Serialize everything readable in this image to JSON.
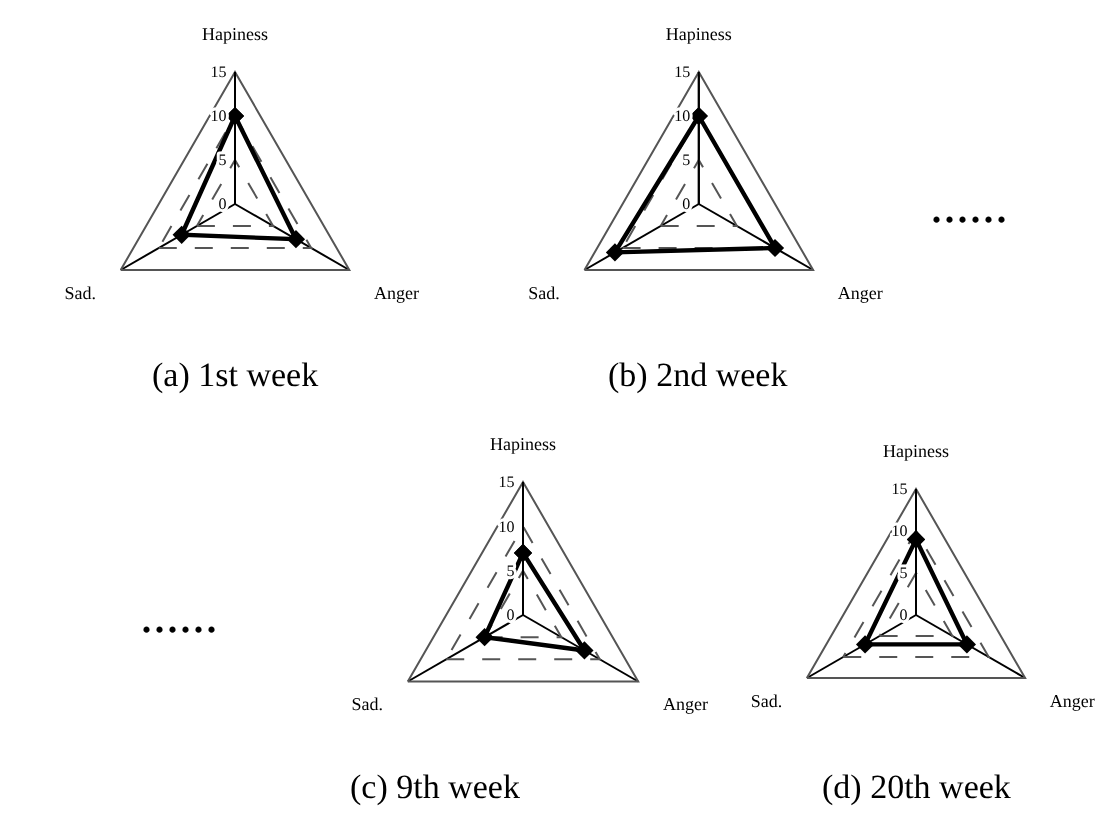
{
  "chart_data": [
    {
      "type": "radar",
      "title": "(a) 1st week",
      "categories": [
        "Hapiness",
        "Anger",
        "Sad."
      ],
      "series": [
        {
          "color": "#000000",
          "values": [
            10,
            8,
            7
          ]
        }
      ],
      "ylim": [
        0,
        15
      ],
      "yticks": [
        0,
        5,
        10,
        15
      ],
      "grid": true,
      "marker": "diamond",
      "line_style": "solid"
    },
    {
      "type": "radar",
      "title": "(b) 2nd week",
      "categories": [
        "Hapiness",
        "Anger",
        "Sad."
      ],
      "series": [
        {
          "color": "#000000",
          "values": [
            10,
            10,
            11
          ]
        }
      ],
      "ylim": [
        0,
        15
      ],
      "yticks": [
        0,
        5,
        10,
        15
      ],
      "grid": true,
      "marker": "diamond",
      "line_style": "solid",
      "annotations": [
        "......"
      ]
    },
    {
      "type": "radar",
      "title": "(c) 9th week",
      "categories": [
        "Hapiness",
        "Anger",
        "Sad."
      ],
      "series": [
        {
          "color": "#000000",
          "values": [
            7,
            8,
            5
          ]
        }
      ],
      "ylim": [
        0,
        15
      ],
      "yticks": [
        0,
        5,
        10,
        15
      ],
      "grid": true,
      "marker": "diamond",
      "line_style": "solid",
      "annotations": [
        "......"
      ]
    },
    {
      "type": "radar",
      "title": "(d) 20th week",
      "categories": [
        "Hapiness",
        "Anger",
        "Sad."
      ],
      "series": [
        {
          "color": "#000000",
          "values": [
            9,
            7,
            7
          ]
        }
      ],
      "ylim": [
        0,
        15
      ],
      "yticks": [
        0,
        5,
        10,
        15
      ],
      "grid": true,
      "marker": "diamond",
      "line_style": "solid"
    }
  ]
}
